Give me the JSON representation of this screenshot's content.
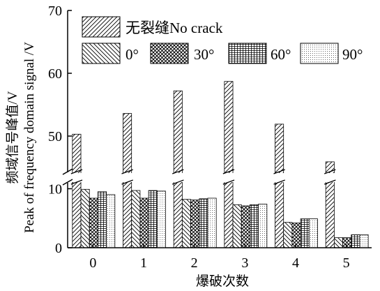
{
  "chart_data": {
    "type": "bar",
    "title": "",
    "xlabel": "爆破次数",
    "ylabel_cn": "频域信号峰值/V",
    "ylabel_en": "Peak of frequency domain signal /V",
    "categories": [
      "0",
      "1",
      "2",
      "3",
      "4",
      "5"
    ],
    "y_ticks": [
      "0",
      "10",
      "50",
      "60",
      "70"
    ],
    "axis_break": {
      "lower_range": [
        0,
        11
      ],
      "upper_range": [
        45,
        70
      ]
    },
    "series": [
      {
        "name": "无裂缝No crack",
        "pattern": "diag-forward",
        "values": [
          50.3,
          53.6,
          57.2,
          58.7,
          51.9,
          45.9
        ]
      },
      {
        "name": "0°",
        "pattern": "diag-back",
        "values": [
          9.9,
          9.7,
          8.2,
          7.3,
          4.3,
          1.7
        ]
      },
      {
        "name": "30°",
        "pattern": "crosshatch",
        "values": [
          8.4,
          8.4,
          8.1,
          7.1,
          4.2,
          1.7
        ]
      },
      {
        "name": "60°",
        "pattern": "grid",
        "values": [
          9.5,
          9.7,
          8.3,
          7.3,
          4.9,
          2.2
        ]
      },
      {
        "name": "90°",
        "pattern": "dots",
        "values": [
          9.0,
          9.6,
          8.4,
          7.4,
          4.9,
          2.2
        ]
      }
    ],
    "legend_placement": "top-inside",
    "grid": false
  }
}
